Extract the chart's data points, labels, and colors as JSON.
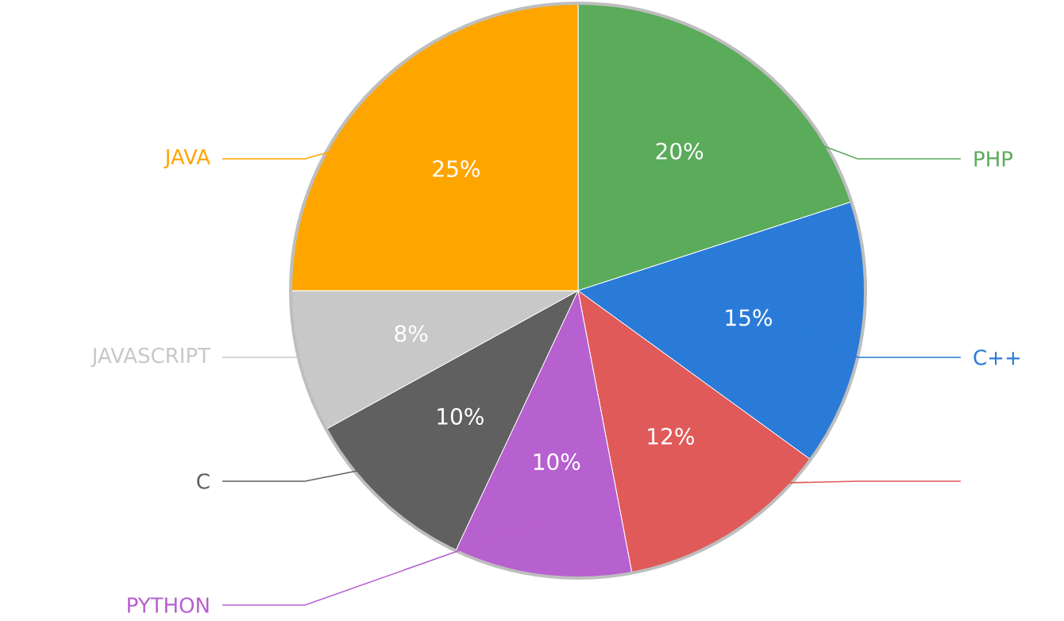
{
  "chart_data": {
    "type": "pie",
    "categories": [
      "PHP",
      "C++",
      null,
      "PYTHON",
      "C",
      "JAVASCRIPT",
      "JAVA"
    ],
    "values": [
      20,
      15,
      12,
      10,
      10,
      8,
      25
    ],
    "value_labels": [
      "20%",
      "15%",
      "12%",
      "10%",
      "10%",
      "8%",
      "25%"
    ],
    "colors": [
      "#5aab5a",
      "#2a7bd8",
      "#e05a5a",
      "#b760cf",
      "#606060",
      "#c8c8c8",
      "#ffa500"
    ]
  }
}
